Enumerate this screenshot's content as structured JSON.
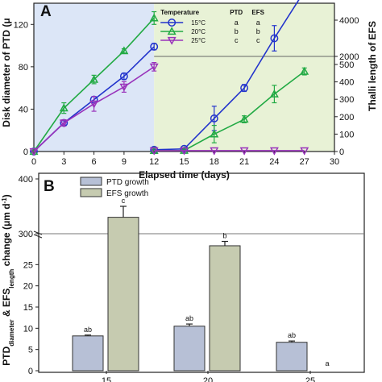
{
  "chart_data": [
    {
      "panel": "A",
      "type": "line",
      "xlabel": "Elapsed time (days)",
      "ylabel_left": "Disk diameter of PTD (μ",
      "ylabel_right": "Thalli length of EFS",
      "xlim": [
        0,
        30
      ],
      "xticks": [
        0,
        3,
        6,
        9,
        12,
        15,
        18,
        21,
        24,
        27,
        30
      ],
      "ylim_left": [
        0,
        140
      ],
      "yticks_left": [
        0,
        40,
        80,
        120
      ],
      "yticks_right_lower": [
        0,
        100,
        200,
        300,
        400,
        500
      ],
      "yticks_right_upper": [
        2000,
        4000
      ],
      "right_axis_break": "2000",
      "shaded_regions": [
        {
          "x": [
            0,
            12
          ],
          "color": "#dce6f7"
        },
        {
          "x": [
            12,
            30
          ],
          "color": "#e8f2d6"
        }
      ],
      "legend": {
        "title": "Temperature",
        "header_cols": [
          "PTD",
          "EFS"
        ],
        "rows": [
          {
            "label": "15°C",
            "ptd": "a",
            "efs": "a"
          },
          {
            "label": "20°C",
            "ptd": "b",
            "efs": "b"
          },
          {
            "label": "25°C",
            "ptd": "c",
            "efs": "c"
          }
        ]
      },
      "series": [
        {
          "name": "15°C",
          "color": "#2233cc",
          "marker": "circle",
          "ptd": {
            "x": [
              0,
              3,
              6,
              9,
              12
            ],
            "y": [
              0,
              27,
              49,
              71,
              99
            ],
            "err": [
              0,
              2,
              3,
              3,
              3
            ]
          },
          "efs": {
            "x": [
              12,
              15,
              18,
              21,
              24,
              27
            ],
            "y": [
              10,
              15,
              190,
              365,
              3000,
              5600
            ],
            "err": [
              3,
              5,
              70,
              20,
              700,
              400
            ]
          }
        },
        {
          "name": "20°C",
          "color": "#22aa44",
          "marker": "triangle-up",
          "ptd": {
            "x": [
              0,
              3,
              6,
              9,
              12
            ],
            "y": [
              0,
              41,
              68,
              95,
              126
            ],
            "err": [
              0,
              5,
              4,
              2,
              6
            ]
          },
          "efs": {
            "x": [
              12,
              15,
              18,
              21,
              24,
              27
            ],
            "y": [
              5,
              6,
              100,
              185,
              330,
              460
            ],
            "err": [
              2,
              3,
              50,
              20,
              50,
              20
            ]
          }
        },
        {
          "name": "25°C",
          "color": "#9933bb",
          "marker": "triangle-down",
          "ptd": {
            "x": [
              0,
              3,
              6,
              9,
              12
            ],
            "y": [
              0,
              27,
              45,
              61,
              80
            ],
            "err": [
              0,
              3,
              7,
              5,
              4
            ]
          },
          "efs": {
            "x": [
              12,
              15,
              18,
              21,
              24,
              27
            ],
            "y": [
              5,
              5,
              5,
              5,
              5,
              5
            ],
            "err": [
              0,
              0,
              0,
              0,
              0,
              0
            ]
          }
        }
      ]
    },
    {
      "panel": "B",
      "type": "bar",
      "ylabel": "PTDdiameter & EFSlength change (μm d⁻¹)",
      "ylabel_parts": [
        "PTD",
        "diameter",
        " & EFS",
        "length",
        " change ",
        "(μm d",
        "-1",
        ")"
      ],
      "categories": [
        "15",
        "20",
        "25"
      ],
      "yticks_lower": [
        0,
        5,
        10,
        15,
        20,
        25
      ],
      "yticks_upper": [
        300,
        400
      ],
      "axis_break": "300",
      "legend": [
        "PTD growth",
        "EFS growth"
      ],
      "colors": {
        "ptd": "#b7c0d6",
        "efs": "#c6cbb0"
      },
      "series": [
        {
          "name": "PTD growth",
          "values": [
            8.2,
            10.5,
            6.7
          ],
          "err": [
            0.2,
            0.5,
            0.3
          ],
          "labels": [
            "ab",
            "ab",
            "ab"
          ]
        },
        {
          "name": "EFS growth",
          "values": [
            330,
            278,
            0
          ],
          "err": [
            20,
            8,
            0
          ],
          "labels": [
            "c",
            "b",
            "a"
          ]
        }
      ]
    }
  ],
  "panel_labels": {
    "a": "A",
    "b": "B"
  }
}
